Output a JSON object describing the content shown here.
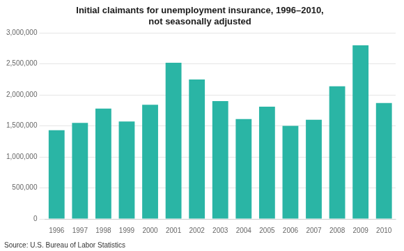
{
  "chart_data": {
    "type": "bar",
    "title": "Initial claimants for unemployment insurance, 1996–2010,\nnot seasonally adjusted",
    "annotations": [
      "Source: U.S. Bureau of Labor Statistics"
    ],
    "categories": [
      "1996",
      "1997",
      "1998",
      "1999",
      "2000",
      "2001",
      "2002",
      "2003",
      "2004",
      "2005",
      "2006",
      "2007",
      "2008",
      "2009",
      "2010"
    ],
    "values": [
      1430000,
      1550000,
      1780000,
      1570000,
      1840000,
      2520000,
      2250000,
      1900000,
      1610000,
      1810000,
      1500000,
      1600000,
      2140000,
      2800000,
      1870000
    ],
    "color": "#2ab5a5",
    "ylim": [
      0,
      3000000
    ],
    "yticks": [
      0,
      {
        "value": 500000,
        "label": "500,000"
      },
      {
        "value": 1000000,
        "label": "1,000,000"
      },
      {
        "value": 1500000,
        "label": "1,500,000"
      },
      {
        "value": 2000000,
        "label": "2,000,000"
      },
      {
        "value": 2500000,
        "label": "2,500,000"
      },
      {
        "value": 3000000,
        "label": "3,000,000"
      }
    ],
    "grid": true
  }
}
